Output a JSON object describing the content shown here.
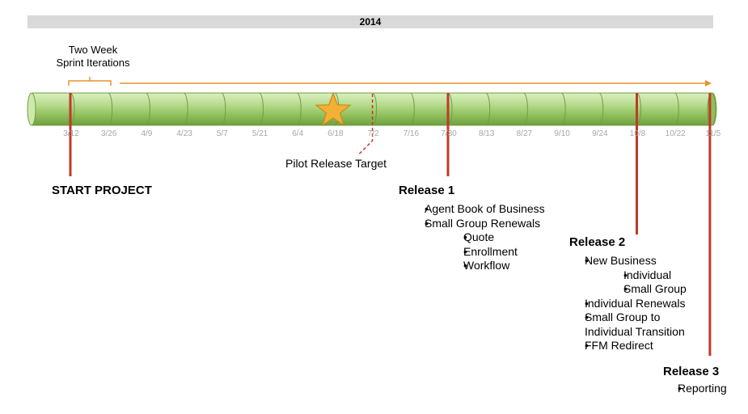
{
  "year": "2014",
  "sprint_label_line1": "Two Week",
  "sprint_label_line2": "Sprint Iterations",
  "dates": [
    "3/12",
    "3/26",
    "4/9",
    "4/23",
    "5/7",
    "5/21",
    "6/4",
    "6/18",
    "7/2",
    "7/16",
    "7/30",
    "8/13",
    "8/27",
    "9/10",
    "9/24",
    "10/8",
    "10/22",
    "11/5"
  ],
  "pilot_label": "Pilot Release Target",
  "start_label": "START PROJECT",
  "release1": {
    "title": "Release 1",
    "items": [
      "Agent Book of Business",
      "Small Group Renewals"
    ],
    "subitems": [
      "Quote",
      "Enrollment",
      "Workflow"
    ]
  },
  "release2": {
    "title": "Release 2",
    "items": [
      "New Business"
    ],
    "subitems": [
      "Individual",
      "Small Group"
    ],
    "items_after": [
      "Individual Renewals",
      "Small Group to",
      "Individual Transition",
      "FFM Redirect"
    ]
  },
  "release3": {
    "title": "Release 3",
    "items": [
      "Reporting"
    ]
  },
  "colors": {
    "cylinder_green": "#a9cf7a",
    "release_line_red": "#c0392b",
    "arrow_orange": "#e8922b",
    "star_gold": "#f2b134",
    "year_bar_gray": "#d9d9d9"
  }
}
